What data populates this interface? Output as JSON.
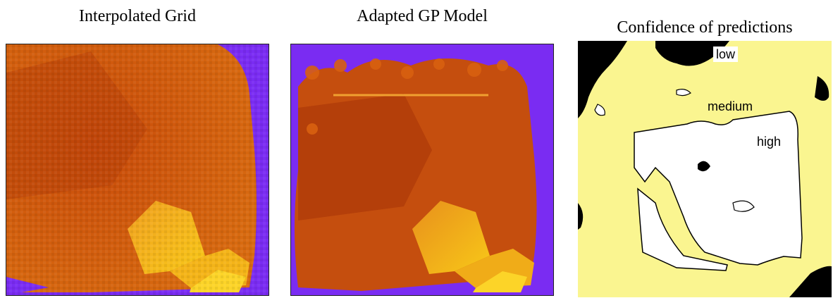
{
  "panels": [
    {
      "title": "Interpolated Grid"
    },
    {
      "title": "Adapted GP Model"
    },
    {
      "title": "Confidence of predictions"
    }
  ],
  "confidence_labels": {
    "low": "low",
    "medium": "medium",
    "high": "high"
  },
  "colors": {
    "background_purple": "#7a2cf2",
    "field_orange": "#d8600c",
    "field_dark": "#b03a08",
    "field_yellow": "#f8c018",
    "conf_low": "#000000",
    "conf_medium": "#faf590",
    "conf_high": "#ffffff"
  }
}
